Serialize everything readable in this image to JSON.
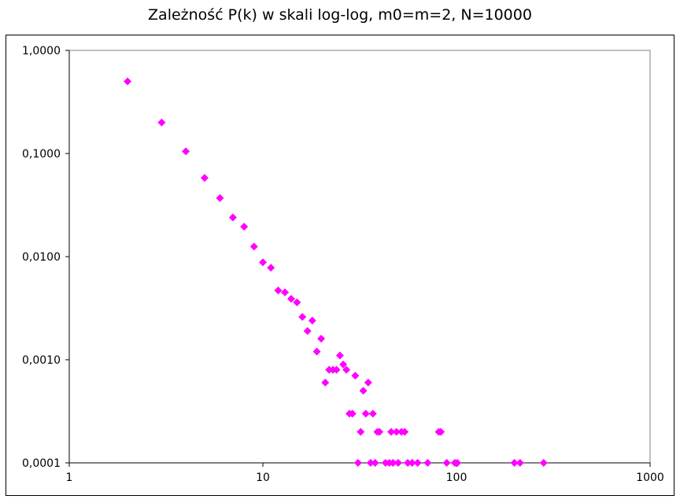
{
  "chart_data": {
    "type": "scatter",
    "title": "Zależność P(k) w skali log-log, m0=m=2, N=10000",
    "x_scale": "log",
    "y_scale": "log",
    "xlim": [
      1,
      1000
    ],
    "ylim": [
      0.0001,
      1
    ],
    "x_tick_labels": [
      "1",
      "10",
      "100",
      "1000"
    ],
    "y_tick_labels": [
      "1,0000",
      "0,1000",
      "0,0100",
      "0,0010",
      "0,0001"
    ],
    "grid": false,
    "legend": "none",
    "marker": "diamond",
    "marker_color": "#ff00ff",
    "points": [
      [
        2,
        0.5
      ],
      [
        3,
        0.2
      ],
      [
        4,
        0.105
      ],
      [
        5,
        0.058
      ],
      [
        6,
        0.037
      ],
      [
        7,
        0.024
      ],
      [
        8,
        0.0195
      ],
      [
        9,
        0.0125
      ],
      [
        10,
        0.0088
      ],
      [
        11,
        0.0078
      ],
      [
        12,
        0.0047
      ],
      [
        13,
        0.0045
      ],
      [
        14,
        0.0039
      ],
      [
        15,
        0.0036
      ],
      [
        16,
        0.0026
      ],
      [
        17,
        0.0019
      ],
      [
        18,
        0.0024
      ],
      [
        19,
        0.0012
      ],
      [
        20,
        0.0016
      ],
      [
        21,
        0.0006
      ],
      [
        22,
        0.0008
      ],
      [
        23,
        0.0008
      ],
      [
        24,
        0.0008
      ],
      [
        25,
        0.0011
      ],
      [
        26,
        0.0009
      ],
      [
        27,
        0.0008
      ],
      [
        28,
        0.0003
      ],
      [
        29,
        0.0003
      ],
      [
        30,
        0.0007
      ],
      [
        31,
        0.0001
      ],
      [
        32,
        0.0002
      ],
      [
        33,
        0.0005
      ],
      [
        34,
        0.0003
      ],
      [
        35,
        0.0006
      ],
      [
        36,
        0.0001
      ],
      [
        37,
        0.0003
      ],
      [
        38,
        0.0001
      ],
      [
        39,
        0.0002
      ],
      [
        40,
        0.0002
      ],
      [
        43,
        0.0001
      ],
      [
        45,
        0.0001
      ],
      [
        46,
        0.0002
      ],
      [
        47,
        0.0001
      ],
      [
        49,
        0.0002
      ],
      [
        50,
        0.0001
      ],
      [
        52,
        0.0002
      ],
      [
        54,
        0.0002
      ],
      [
        56,
        0.0001
      ],
      [
        59,
        0.0001
      ],
      [
        63,
        0.0001
      ],
      [
        71,
        0.0001
      ],
      [
        81,
        0.0002
      ],
      [
        83,
        0.0002
      ],
      [
        89,
        0.0001
      ],
      [
        98,
        0.0001
      ],
      [
        101,
        0.0001
      ],
      [
        199,
        0.0001
      ],
      [
        213,
        0.0001
      ],
      [
        282,
        0.0001
      ]
    ]
  }
}
